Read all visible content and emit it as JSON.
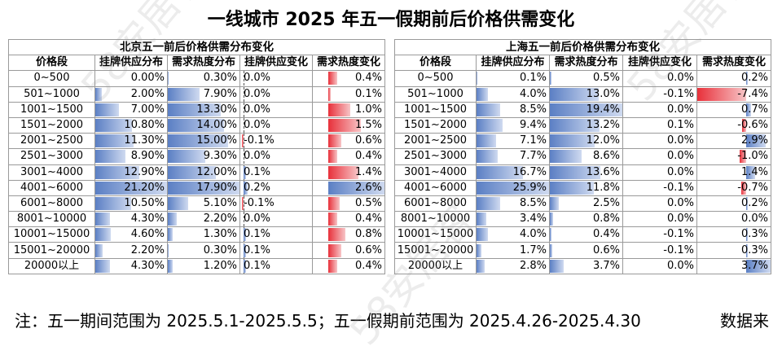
{
  "title": "一线城市 2025 年五一假期前后价格供需变化",
  "columns": [
    "价格段",
    "挂牌供应分布",
    "需求热度分布",
    "挂牌供应变化",
    "需求热度变化"
  ],
  "beijing": {
    "caption": "北京五一前后价格供需分布变化",
    "rows": [
      {
        "range": "0~500",
        "supply": "0.00%",
        "demand": "0.30%",
        "supply_change": "0.0%",
        "demand_change": "0.4%"
      },
      {
        "range": "501~1000",
        "supply": "2.00%",
        "demand": "7.90%",
        "supply_change": "0.0%",
        "demand_change": "0.1%"
      },
      {
        "range": "1001~1500",
        "supply": "7.00%",
        "demand": "13.30%",
        "supply_change": "0.0%",
        "demand_change": "1.0%"
      },
      {
        "range": "1501~2000",
        "supply": "10.80%",
        "demand": "14.00%",
        "supply_change": "0.0%",
        "demand_change": "1.5%"
      },
      {
        "range": "2001~2500",
        "supply": "11.30%",
        "demand": "15.00%",
        "supply_change": "-0.1%",
        "demand_change": "0.6%"
      },
      {
        "range": "2501~3000",
        "supply": "8.90%",
        "demand": "9.30%",
        "supply_change": "0.0%",
        "demand_change": "0.4%"
      },
      {
        "range": "3001~4000",
        "supply": "12.90%",
        "demand": "12.00%",
        "supply_change": "0.1%",
        "demand_change": "1.4%"
      },
      {
        "range": "4001~6000",
        "supply": "21.20%",
        "demand": "17.90%",
        "supply_change": "0.2%",
        "demand_change": "2.6%"
      },
      {
        "range": "6001~8000",
        "supply": "10.50%",
        "demand": "5.10%",
        "supply_change": "-0.1%",
        "demand_change": "0.5%"
      },
      {
        "range": "8001~10000",
        "supply": "4.30%",
        "demand": "2.20%",
        "supply_change": "0.0%",
        "demand_change": "0.4%"
      },
      {
        "range": "10001~15000",
        "supply": "4.60%",
        "demand": "1.30%",
        "supply_change": "0.1%",
        "demand_change": "0.8%"
      },
      {
        "range": "15001~20000",
        "supply": "2.20%",
        "demand": "0.30%",
        "supply_change": "0.1%",
        "demand_change": "0.6%"
      },
      {
        "range": "20000以上",
        "supply": "4.30%",
        "demand": "1.20%",
        "supply_change": "0.1%",
        "demand_change": "0.4%"
      }
    ]
  },
  "shanghai": {
    "caption": "上海五一前后价格供需分布变化",
    "rows": [
      {
        "range": "0~500",
        "supply": "0.1%",
        "demand": "0.5%",
        "supply_change": "0.0%",
        "demand_change": "0.2%"
      },
      {
        "range": "501~1000",
        "supply": "4.0%",
        "demand": "13.0%",
        "supply_change": "-0.1%",
        "demand_change": "-7.4%"
      },
      {
        "range": "1001~1500",
        "supply": "8.5%",
        "demand": "19.4%",
        "supply_change": "0.0%",
        "demand_change": "0.7%"
      },
      {
        "range": "1501~2000",
        "supply": "9.4%",
        "demand": "13.2%",
        "supply_change": "0.1%",
        "demand_change": "-0.6%"
      },
      {
        "range": "2001~2500",
        "supply": "7.1%",
        "demand": "12.0%",
        "supply_change": "0.0%",
        "demand_change": "2.9%"
      },
      {
        "range": "2501~3000",
        "supply": "7.7%",
        "demand": "8.6%",
        "supply_change": "0.0%",
        "demand_change": "-1.0%"
      },
      {
        "range": "3001~4000",
        "supply": "16.7%",
        "demand": "13.6%",
        "supply_change": "0.0%",
        "demand_change": "1.4%"
      },
      {
        "range": "4001~6000",
        "supply": "25.9%",
        "demand": "11.8%",
        "supply_change": "-0.1%",
        "demand_change": "-0.7%"
      },
      {
        "range": "6001~8000",
        "supply": "8.5%",
        "demand": "2.5%",
        "supply_change": "0.0%",
        "demand_change": "0.2%"
      },
      {
        "range": "8001~10000",
        "supply": "3.4%",
        "demand": "0.8%",
        "supply_change": "0.0%",
        "demand_change": "0.0%"
      },
      {
        "range": "10001~15000",
        "supply": "4.0%",
        "demand": "0.4%",
        "supply_change": "-0.1%",
        "demand_change": "0.3%"
      },
      {
        "range": "15001~20000",
        "supply": "1.7%",
        "demand": "0.6%",
        "supply_change": "-0.1%",
        "demand_change": "0.3%"
      },
      {
        "range": "20000以上",
        "supply": "2.8%",
        "demand": "3.7%",
        "supply_change": "0.0%",
        "demand_change": "3.7%"
      }
    ]
  },
  "footnote": "注：五一期间范围为 2025.5.1-2025.5.5；五一假期前范围为 2025.4.26-2025.4.30",
  "source": "数据来",
  "watermark": "58安居客"
}
